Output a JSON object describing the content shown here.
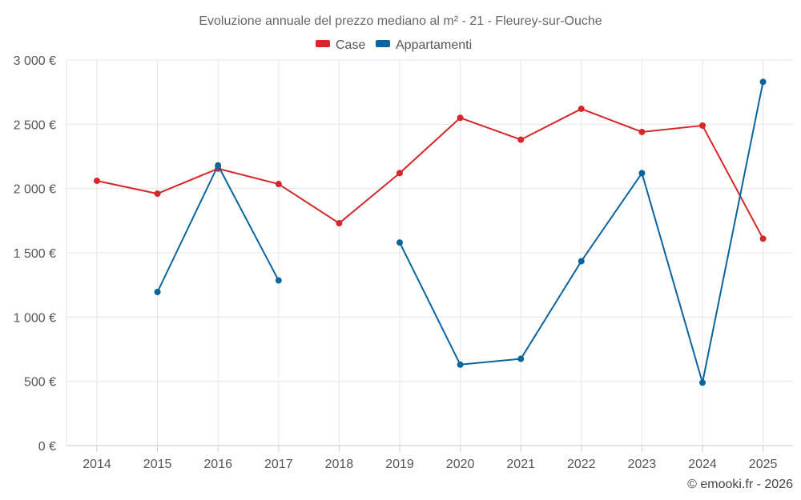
{
  "chart_data": {
    "type": "line",
    "title": "Evoluzione annuale del prezzo mediano al m² - 21 - Fleurey-sur-Ouche",
    "categories": [
      "2014",
      "2015",
      "2016",
      "2017",
      "2018",
      "2019",
      "2020",
      "2021",
      "2022",
      "2023",
      "2024",
      "2025"
    ],
    "ylim": [
      0,
      3000
    ],
    "yticks": [
      0,
      500,
      1000,
      1500,
      2000,
      2500,
      3000
    ],
    "ytick_labels": [
      "0 €",
      "500 €",
      "1 000 €",
      "1 500 €",
      "2 000 €",
      "2 500 €",
      "3 000 €"
    ],
    "grid": true,
    "legend_position": "top-center",
    "series": [
      {
        "name": "Case",
        "color": "#d62728",
        "values": [
          2060,
          1960,
          2155,
          2035,
          1730,
          2120,
          2550,
          2380,
          2620,
          2440,
          2490,
          1610
        ]
      },
      {
        "name": "Appartamenti",
        "color": "#0a659e",
        "values": [
          null,
          1195,
          2180,
          1285,
          null,
          1580,
          630,
          675,
          1435,
          2120,
          490,
          2830
        ]
      }
    ]
  },
  "credit": "© emooki.fr - 2026"
}
